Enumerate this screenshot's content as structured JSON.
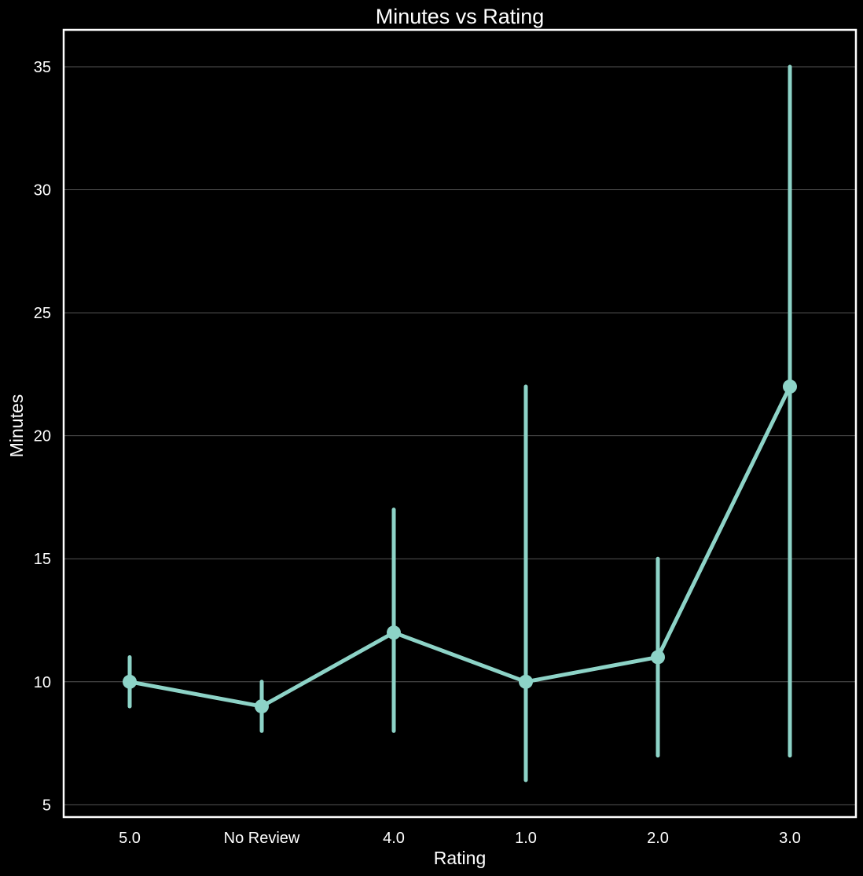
{
  "chart_data": {
    "type": "line",
    "title": "Minutes vs Rating",
    "xlabel": "Rating",
    "ylabel": "Minutes",
    "categories": [
      "5.0",
      "No Review",
      "4.0",
      "1.0",
      "2.0",
      "3.0"
    ],
    "series": [
      {
        "values": [
          10,
          9,
          12,
          10,
          11,
          22
        ],
        "error_low": [
          9,
          8,
          8,
          6,
          7,
          7
        ],
        "error_high": [
          11,
          10,
          17,
          22,
          15,
          35
        ]
      }
    ],
    "ylim": [
      4.5,
      36.5
    ],
    "yticks": [
      5,
      10,
      15,
      20,
      25,
      30,
      35
    ],
    "grid": true,
    "legend": "none",
    "colors": {
      "background": "#000000",
      "line": "#8dd3c7",
      "grid": "#555555",
      "frame": "#ffffff",
      "text": "#ffffff"
    }
  }
}
